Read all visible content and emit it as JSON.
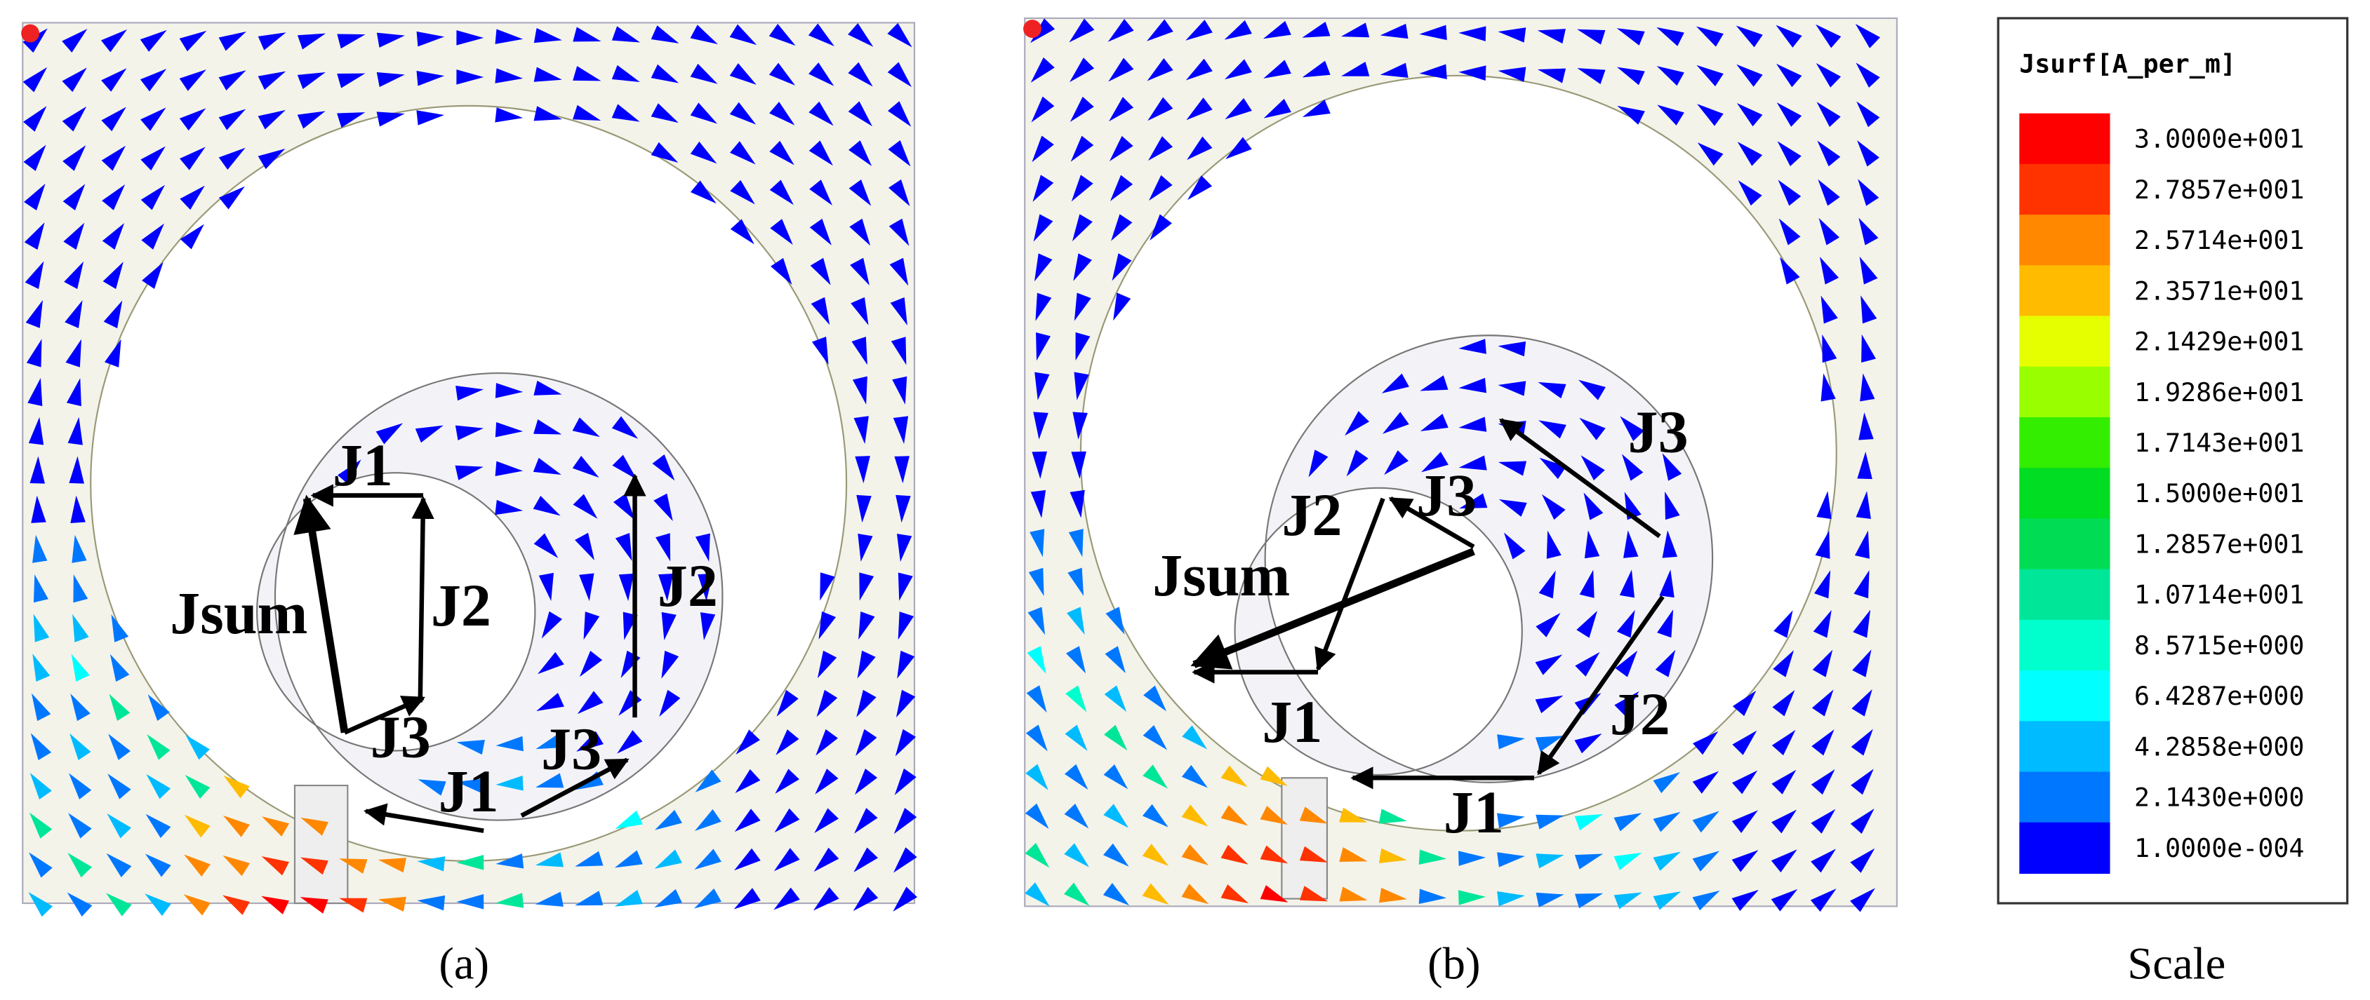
{
  "panels": [
    {
      "caption": "(a)",
      "labels": [
        "J1",
        "J2",
        "J3",
        "Jsum",
        "J2",
        "J3",
        "J1"
      ]
    },
    {
      "caption": "(b)",
      "labels": [
        "J3",
        "J3",
        "J2",
        "Jsum",
        "J1",
        "J2",
        "J1"
      ]
    }
  ],
  "legend": {
    "title": "Jsurf[A_per_m]",
    "caption": "Scale",
    "ticks": [
      "3.0000e+001",
      "2.7857e+001",
      "2.5714e+001",
      "2.3571e+001",
      "2.1429e+001",
      "1.9286e+001",
      "1.7143e+001",
      "1.5000e+001",
      "1.2857e+001",
      "1.0714e+001",
      "8.5715e+000",
      "6.4287e+000",
      "4.2858e+000",
      "2.1430e+000",
      "1.0000e-004"
    ],
    "colors": [
      "#ff0000",
      "#ff3300",
      "#ff8800",
      "#ffbb00",
      "#e6ff00",
      "#99ff00",
      "#33ee00",
      "#00dd22",
      "#00dd55",
      "#00e699",
      "#00ffcc",
      "#00ffff",
      "#00bbff",
      "#0077ff",
      "#0000ff"
    ]
  }
}
